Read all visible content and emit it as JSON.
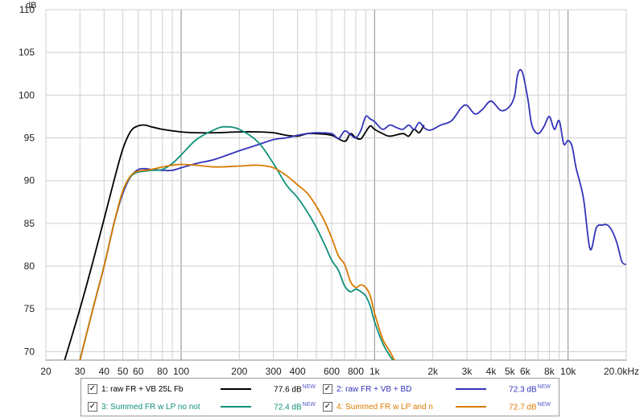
{
  "chart_data": {
    "type": "line",
    "title": "",
    "xlabel": "Hz",
    "ylabel": "dB",
    "xscale": "log",
    "xlim": [
      20,
      20000
    ],
    "ylim": [
      69,
      110
    ],
    "y_ticks": [
      70,
      75,
      80,
      85,
      90,
      95,
      100,
      105,
      110
    ],
    "x_ticks": [
      {
        "v": 20,
        "label": "20"
      },
      {
        "v": 30,
        "label": "30"
      },
      {
        "v": 40,
        "label": "40"
      },
      {
        "v": 50,
        "label": "50"
      },
      {
        "v": 60,
        "label": "60"
      },
      {
        "v": 80,
        "label": "80"
      },
      {
        "v": 100,
        "label": "100"
      },
      {
        "v": 200,
        "label": "200"
      },
      {
        "v": 300,
        "label": "300"
      },
      {
        "v": 400,
        "label": "400"
      },
      {
        "v": 600,
        "label": "600"
      },
      {
        "v": 800,
        "label": "800"
      },
      {
        "v": 1000,
        "label": "1k"
      },
      {
        "v": 2000,
        "label": "2k"
      },
      {
        "v": 3000,
        "label": "3k"
      },
      {
        "v": 4000,
        "label": "4k"
      },
      {
        "v": 5000,
        "label": "5k"
      },
      {
        "v": 6000,
        "label": "6k"
      },
      {
        "v": 8000,
        "label": "8k"
      },
      {
        "v": 10000,
        "label": "10k"
      },
      {
        "v": 20000,
        "label": "20.0kHz"
      }
    ],
    "series": [
      {
        "name": "1: raw FR + VB 25L Fb",
        "color": "#000000",
        "value": "77.6 dB",
        "badge": "NEW",
        "x": [
          25,
          30,
          35,
          40,
          45,
          50,
          55,
          60,
          65,
          70,
          80,
          100,
          120,
          150,
          200,
          250,
          300,
          350,
          400,
          450,
          500,
          600,
          700,
          750,
          800,
          850,
          900,
          950,
          1000,
          1100,
          1200,
          1400,
          1500,
          1600,
          1700,
          1800
        ],
        "y": [
          69,
          75,
          80.5,
          85.5,
          90,
          93.7,
          95.8,
          96.4,
          96.5,
          96.3,
          96.0,
          95.7,
          95.6,
          95.6,
          95.7,
          95.7,
          95.6,
          95.3,
          95.2,
          95.5,
          95.5,
          95.3,
          94.6,
          95.5,
          95.0,
          94.9,
          95.7,
          96.4,
          96.0,
          95.5,
          95.2,
          95.5,
          95.2,
          96.0,
          95.6,
          96.5
        ]
      },
      {
        "name": "2: raw FR + VB + BD",
        "color": "#3333bb",
        "value": "72.3 dB",
        "badge": "NEW",
        "x": [
          30,
          35,
          40,
          45,
          50,
          55,
          60,
          65,
          70,
          80,
          90,
          100,
          120,
          150,
          200,
          250,
          300,
          350,
          400,
          450,
          500,
          600,
          650,
          700,
          750,
          800,
          850,
          900,
          950,
          1000,
          1100,
          1200,
          1300,
          1400,
          1500,
          1600,
          1700,
          1800,
          1900,
          2000,
          2200,
          2500,
          2800,
          3000,
          3300,
          3600,
          4000,
          4500,
          5000,
          5300,
          5500,
          5800,
          6200,
          6500,
          7000,
          7500,
          8000,
          8500,
          9000,
          9500,
          10000,
          10500,
          11000,
          12000,
          13000,
          14000,
          15000,
          16000,
          17000,
          18000,
          19000,
          20000
        ],
        "y": [
          69,
          75,
          80,
          85,
          88.5,
          90.5,
          91.3,
          91.4,
          91.3,
          91.2,
          91.2,
          91.5,
          92.0,
          92.5,
          93.5,
          94.2,
          94.8,
          95.0,
          95.3,
          95.5,
          95.6,
          95.5,
          94.9,
          95.8,
          95.4,
          95.0,
          95.9,
          97.5,
          97.2,
          96.9,
          96.0,
          96.5,
          96.2,
          96.0,
          96.5,
          96.0,
          96.8,
          96.2,
          95.9,
          96.0,
          96.5,
          97.0,
          98.5,
          98.8,
          97.8,
          98.3,
          99.3,
          98.2,
          98.7,
          100.0,
          102.5,
          102.7,
          99.5,
          96.5,
          95.5,
          96.3,
          97.5,
          96.0,
          97.0,
          94.3,
          94.7,
          94.0,
          91.5,
          88.0,
          82.0,
          84.5,
          84.8,
          84.8,
          84.0,
          82.5,
          80.5,
          80.2
        ]
      },
      {
        "name": "3: Summed FR w LP no not",
        "color": "#11917a",
        "value": "72.4 dB",
        "badge": "NEW",
        "x": [
          30,
          35,
          40,
          45,
          50,
          55,
          60,
          65,
          70,
          80,
          90,
          100,
          120,
          150,
          170,
          200,
          250,
          300,
          350,
          400,
          450,
          500,
          550,
          600,
          650,
          700,
          750,
          800,
          850,
          900,
          950,
          1000,
          1100,
          1200,
          1300
        ],
        "y": [
          69,
          75,
          80,
          85,
          88.8,
          90.5,
          91.0,
          91.1,
          91.2,
          91.3,
          92.0,
          93.0,
          94.8,
          96.0,
          96.3,
          96.0,
          94.5,
          92.0,
          89.5,
          88.0,
          86.3,
          84.5,
          82.6,
          80.7,
          79.5,
          77.7,
          77.0,
          77.3,
          77.0,
          76.5,
          75.3,
          73.5,
          71.0,
          69.5,
          68.5
        ]
      },
      {
        "name": "4: Summed FR w LP and n",
        "color": "#d97a00",
        "value": "72.7 dB",
        "badge": "NEW",
        "x": [
          30,
          35,
          40,
          45,
          50,
          55,
          60,
          65,
          70,
          80,
          90,
          100,
          120,
          150,
          200,
          250,
          300,
          350,
          400,
          450,
          500,
          550,
          600,
          650,
          700,
          750,
          800,
          850,
          900,
          950,
          1000,
          1100,
          1200,
          1300
        ],
        "y": [
          69,
          75,
          80,
          85,
          88.8,
          90.6,
          91.1,
          91.2,
          91.3,
          91.6,
          91.8,
          91.9,
          91.8,
          91.6,
          91.7,
          91.8,
          91.5,
          90.6,
          89.5,
          88.5,
          87.0,
          85.3,
          83.3,
          81.2,
          80.2,
          78.2,
          77.5,
          77.8,
          77.5,
          76.5,
          74.5,
          71.5,
          70.0,
          68.5
        ]
      }
    ]
  }
}
